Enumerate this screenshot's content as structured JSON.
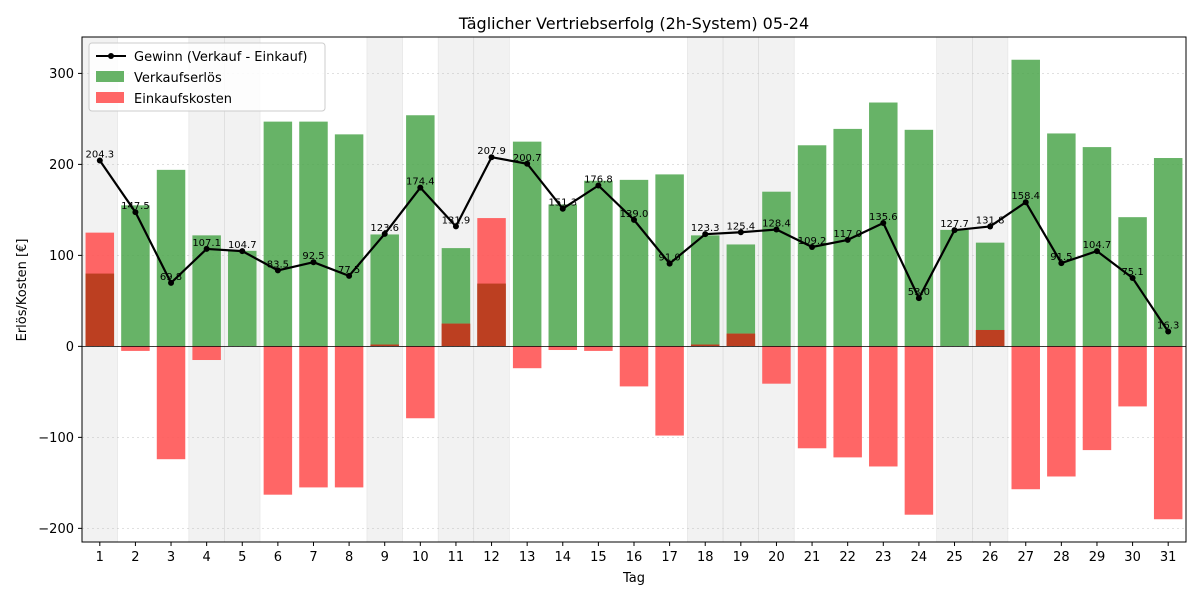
{
  "chart_data": {
    "type": "bar",
    "title": "Täglicher Vertriebserfolg (2h-System) 05-24",
    "xlabel": "Tag",
    "ylabel": "Erlös/Kosten [€]",
    "ylim": [
      -215,
      340
    ],
    "yticks": [
      -200,
      -100,
      0,
      100,
      200,
      300
    ],
    "grid": true,
    "legend_position": "top-left",
    "categories": [
      "1",
      "2",
      "3",
      "4",
      "5",
      "6",
      "7",
      "8",
      "9",
      "10",
      "11",
      "12",
      "13",
      "14",
      "15",
      "16",
      "17",
      "18",
      "19",
      "20",
      "21",
      "22",
      "23",
      "24",
      "25",
      "26",
      "27",
      "28",
      "29",
      "30",
      "31"
    ],
    "shaded_days": [
      "1",
      "4",
      "5",
      "9",
      "11",
      "12",
      "18",
      "19",
      "20",
      "25",
      "26"
    ],
    "series": [
      {
        "name": "Gewinn (Verkauf - Einkauf)",
        "kind": "line",
        "color": "#000000",
        "values": [
          204.3,
          147.5,
          69.8,
          107.1,
          104.7,
          83.5,
          92.5,
          77.5,
          123.6,
          174.4,
          131.9,
          207.9,
          200.7,
          151.3,
          176.8,
          139.0,
          91.0,
          123.3,
          125.4,
          128.4,
          109.2,
          117.0,
          135.6,
          53.0,
          127.7,
          131.8,
          158.4,
          91.5,
          104.7,
          75.1,
          16.3
        ],
        "labels": [
          "204.3",
          "147.5",
          "69.8",
          "107.1",
          "104.7",
          "83.5",
          "92.5",
          "77.5",
          "123.6",
          "174.4",
          "131.9",
          "207.9",
          "200.7",
          "151.3",
          "176.8",
          "139.0",
          "91.0",
          "123.3",
          "125.4",
          "128.4",
          "109.2",
          "117.0",
          "135.6",
          "53.0",
          "127.7",
          "131.8",
          "158.4",
          "91.5",
          "104.7",
          "75.1",
          "16.3"
        ]
      },
      {
        "name": "Verkaufserlös",
        "kind": "bar",
        "color": "#4ca64c",
        "values": [
          80,
          155,
          194,
          122,
          105,
          247,
          247,
          233,
          123,
          254,
          108,
          69,
          225,
          156,
          182,
          183,
          189,
          122,
          112,
          170,
          221,
          239,
          268,
          238,
          128,
          114,
          315,
          234,
          219,
          142,
          207
        ]
      },
      {
        "name": "Einkaufskosten",
        "kind": "bar",
        "color": "#ff5555",
        "values": [
          125,
          -5,
          -124,
          -15,
          0,
          -163,
          -155,
          -155,
          2,
          -79,
          25,
          141,
          -24,
          -4,
          -5,
          -44,
          -98,
          2,
          14,
          -41,
          -112,
          -122,
          -132,
          -185,
          0,
          18,
          -157,
          -143,
          -114,
          -66,
          -190
        ]
      }
    ]
  }
}
